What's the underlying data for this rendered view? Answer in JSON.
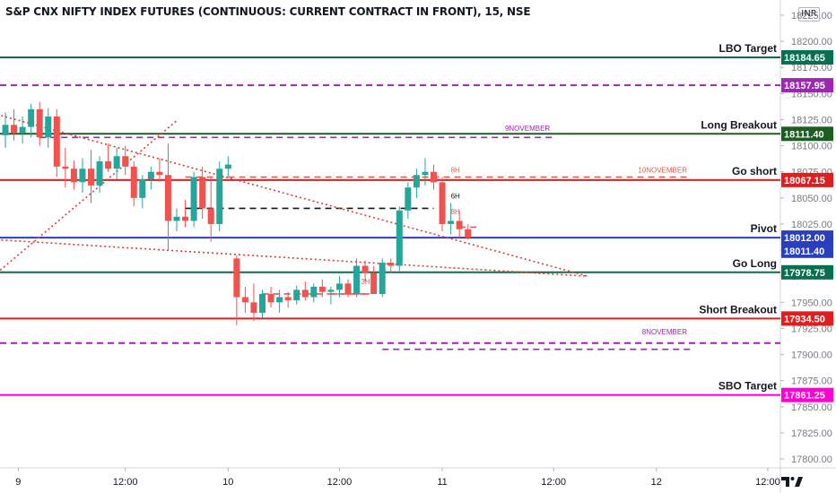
{
  "header": {
    "title": "S&P CNX NIFTY INDEX FUTURES (CONTINUOUS: CURRENT CONTRACT IN FRONT), 15, NSE",
    "currency": "INR"
  },
  "colors": {
    "up": "#26a69a",
    "down": "#ef5350",
    "red_level": "#e01e1e",
    "green_level": "#0b6e4f",
    "purple": "#9c27b0",
    "magenta": "#ff00d4",
    "blue": "#2a3fbd",
    "trend": "#e53935"
  },
  "chart_data": {
    "type": "candlestick",
    "title": "S&P CNX NIFTY INDEX FUTURES (CONTINUOUS: CURRENT CONTRACT IN FRONT), 15, NSE",
    "timeframe": "15",
    "y_axis": {
      "ticks": [
        17800,
        17825,
        17850,
        17875,
        17900,
        17925,
        17950,
        17975,
        18000,
        18025,
        18050,
        18075,
        18100,
        18125,
        18150,
        18175,
        18200,
        18225
      ],
      "range": [
        17790,
        18230
      ],
      "side": "right"
    },
    "x_axis": {
      "tick_labels": [
        {
          "label": "9",
          "t": 1.5
        },
        {
          "label": "12:00",
          "t": 14
        },
        {
          "label": "10",
          "t": 26
        },
        {
          "label": "12:00",
          "t": 39
        },
        {
          "label": "11",
          "t": 51
        },
        {
          "label": "12:00",
          "t": 64
        },
        {
          "label": "12",
          "t": 76
        },
        {
          "label": "12:00",
          "t": 89
        }
      ]
    },
    "candles": [
      {
        "t": 0,
        "o": 18110,
        "h": 18132,
        "l": 18098,
        "c": 18120
      },
      {
        "t": 1,
        "o": 18120,
        "h": 18135,
        "l": 18105,
        "c": 18112
      },
      {
        "t": 2,
        "o": 18112,
        "h": 18128,
        "l": 18102,
        "c": 18118
      },
      {
        "t": 3,
        "o": 18118,
        "h": 18140,
        "l": 18108,
        "c": 18135
      },
      {
        "t": 4,
        "o": 18135,
        "h": 18142,
        "l": 18100,
        "c": 18108
      },
      {
        "t": 5,
        "o": 18108,
        "h": 18136,
        "l": 18098,
        "c": 18128
      },
      {
        "t": 6,
        "o": 18128,
        "h": 18135,
        "l": 18070,
        "c": 18080
      },
      {
        "t": 7,
        "o": 18080,
        "h": 18098,
        "l": 18060,
        "c": 18078
      },
      {
        "t": 8,
        "o": 18078,
        "h": 18086,
        "l": 18058,
        "c": 18065
      },
      {
        "t": 9,
        "o": 18065,
        "h": 18088,
        "l": 18055,
        "c": 18078
      },
      {
        "t": 10,
        "o": 18078,
        "h": 18096,
        "l": 18045,
        "c": 18062
      },
      {
        "t": 11,
        "o": 18062,
        "h": 18090,
        "l": 18055,
        "c": 18085
      },
      {
        "t": 12,
        "o": 18085,
        "h": 18102,
        "l": 18075,
        "c": 18078
      },
      {
        "t": 13,
        "o": 18078,
        "h": 18098,
        "l": 18068,
        "c": 18090
      },
      {
        "t": 14,
        "o": 18090,
        "h": 18100,
        "l": 18072,
        "c": 18080
      },
      {
        "t": 15,
        "o": 18080,
        "h": 18085,
        "l": 18042,
        "c": 18050
      },
      {
        "t": 16,
        "o": 18050,
        "h": 18072,
        "l": 18040,
        "c": 18068
      },
      {
        "t": 17,
        "o": 18068,
        "h": 18080,
        "l": 18058,
        "c": 18075
      },
      {
        "t": 18,
        "o": 18075,
        "h": 18088,
        "l": 18065,
        "c": 18072
      },
      {
        "t": 19,
        "o": 18072,
        "h": 18102,
        "l": 18000,
        "c": 18028
      },
      {
        "t": 20,
        "o": 18028,
        "h": 18040,
        "l": 18018,
        "c": 18032
      },
      {
        "t": 21,
        "o": 18032,
        "h": 18048,
        "l": 18022,
        "c": 18028
      },
      {
        "t": 22,
        "o": 18028,
        "h": 18075,
        "l": 18022,
        "c": 18070
      },
      {
        "t": 23,
        "o": 18070,
        "h": 18080,
        "l": 18030,
        "c": 18040
      },
      {
        "t": 24,
        "o": 18040,
        "h": 18070,
        "l": 18008,
        "c": 18025
      },
      {
        "t": 25,
        "o": 18025,
        "h": 18085,
        "l": 18018,
        "c": 18078
      },
      {
        "t": 26,
        "o": 18078,
        "h": 18090,
        "l": 18070,
        "c": 18082
      },
      {
        "t": 27,
        "o": 17992,
        "h": 17995,
        "l": 17928,
        "c": 17955
      },
      {
        "t": 28,
        "o": 17955,
        "h": 17965,
        "l": 17940,
        "c": 17950
      },
      {
        "t": 29,
        "o": 17950,
        "h": 17968,
        "l": 17932,
        "c": 17940
      },
      {
        "t": 30,
        "o": 17940,
        "h": 17962,
        "l": 17935,
        "c": 17958
      },
      {
        "t": 31,
        "o": 17958,
        "h": 17965,
        "l": 17945,
        "c": 17950
      },
      {
        "t": 32,
        "o": 17950,
        "h": 17962,
        "l": 17940,
        "c": 17955
      },
      {
        "t": 33,
        "o": 17955,
        "h": 17960,
        "l": 17945,
        "c": 17952
      },
      {
        "t": 34,
        "o": 17952,
        "h": 17966,
        "l": 17948,
        "c": 17962
      },
      {
        "t": 35,
        "o": 17962,
        "h": 17970,
        "l": 17952,
        "c": 17955
      },
      {
        "t": 36,
        "o": 17955,
        "h": 17968,
        "l": 17950,
        "c": 17965
      },
      {
        "t": 37,
        "o": 17965,
        "h": 17972,
        "l": 17955,
        "c": 17960
      },
      {
        "t": 38,
        "o": 17960,
        "h": 17965,
        "l": 17948,
        "c": 17962
      },
      {
        "t": 39,
        "o": 17962,
        "h": 17975,
        "l": 17955,
        "c": 17968
      },
      {
        "t": 40,
        "o": 17968,
        "h": 17972,
        "l": 17955,
        "c": 17958
      },
      {
        "t": 41,
        "o": 17958,
        "h": 17992,
        "l": 17955,
        "c": 17985
      },
      {
        "t": 42,
        "o": 17985,
        "h": 17990,
        "l": 17970,
        "c": 17978
      },
      {
        "t": 43,
        "o": 17978,
        "h": 17985,
        "l": 17958,
        "c": 17958
      },
      {
        "t": 44,
        "o": 17958,
        "h": 17992,
        "l": 17955,
        "c": 17988
      },
      {
        "t": 45,
        "o": 17988,
        "h": 17992,
        "l": 17978,
        "c": 17985
      },
      {
        "t": 46,
        "o": 17985,
        "h": 18042,
        "l": 17980,
        "c": 18038
      },
      {
        "t": 47,
        "o": 18038,
        "h": 18065,
        "l": 18030,
        "c": 18060
      },
      {
        "t": 48,
        "o": 18060,
        "h": 18078,
        "l": 18050,
        "c": 18072
      },
      {
        "t": 49,
        "o": 18072,
        "h": 18088,
        "l": 18062,
        "c": 18075
      },
      {
        "t": 50,
        "o": 18075,
        "h": 18082,
        "l": 18058,
        "c": 18065
      },
      {
        "t": 51,
        "o": 18065,
        "h": 18070,
        "l": 18018,
        "c": 18025
      },
      {
        "t": 52,
        "o": 18025,
        "h": 18045,
        "l": 18015,
        "c": 18028
      },
      {
        "t": 53,
        "o": 18028,
        "h": 18038,
        "l": 18012,
        "c": 18020
      },
      {
        "t": 54,
        "o": 18020,
        "h": 18025,
        "l": 18010,
        "c": 18012
      }
    ],
    "levels": [
      {
        "label": "LBO Target",
        "price": 18184.65,
        "price_label": "18184.65",
        "color": "#0b6e4f",
        "style": "solid"
      },
      {
        "label": "",
        "price": 18157.95,
        "price_label": "18157.95",
        "color": "#9c27b0",
        "style": "dashed"
      },
      {
        "label": "Long Breakout",
        "price": 18111.4,
        "price_label": "18111.40",
        "color": "#1b5e20",
        "style": "solid"
      },
      {
        "label": "Go short",
        "price": 18067.15,
        "price_label": "18067.15",
        "color": "#e01e1e",
        "style": "solid"
      },
      {
        "label": "Pivot",
        "price": 18012.0,
        "price_label": "18012.00",
        "color": "#2a3fbd",
        "style": "solid"
      },
      {
        "label": "Go Long",
        "price": 17978.75,
        "price_label": "17978.75",
        "color": "#0b6e4f",
        "style": "solid"
      },
      {
        "label": "Short Breakout",
        "price": 17934.5,
        "price_label": "17934.50",
        "color": "#e01e1e",
        "style": "solid"
      },
      {
        "label": "",
        "price": 17911.0,
        "price_label": "",
        "color": "#9c27b0",
        "style": "dashed"
      },
      {
        "label": "SBO Target",
        "price": 17861.25,
        "price_label": "17861.25",
        "color": "#ff00d4",
        "style": "solid"
      }
    ],
    "current_price": {
      "price": 18011.4,
      "label": "18011.40",
      "color": "#2a3fbd"
    },
    "short_levels": [
      {
        "t0": 4,
        "t1": 64,
        "price": 18108,
        "color": "#9c27b0",
        "style": "dashed",
        "note": "9NOVEMBER",
        "note_price": 18117
      },
      {
        "t0": 21,
        "t1": 80,
        "price": 18070,
        "color": "#ef5350",
        "style": "dashed",
        "note": "10NOVEMBER",
        "note_price": 18077
      },
      {
        "t0": 21,
        "t1": 50,
        "price": 18040,
        "color": "#131722",
        "style": "dashed",
        "note": "",
        "note_price": 0
      },
      {
        "t0": 30,
        "t1": 42,
        "price": 17958,
        "color": "#ef5350",
        "style": "dashed",
        "note": "",
        "note_price": 0
      },
      {
        "t0": 38,
        "t1": 43,
        "price": 17958,
        "color": "#ef5350",
        "style": "dashed",
        "note": "3H",
        "note_price": 17970
      },
      {
        "t0": 44,
        "t1": 80,
        "price": 17905,
        "color": "#9c27b0",
        "style": "dashed",
        "note": "8NOVEMBER",
        "note_price": 17922
      },
      {
        "t0": 53,
        "t1": 55,
        "price": 18022,
        "color": "#ef5350",
        "style": "dashed",
        "note": "",
        "note_price": 0
      }
    ],
    "mini_labels": [
      {
        "text": "8H",
        "t": 52,
        "price": 18077,
        "color": "#ef5350"
      },
      {
        "text": "6H",
        "t": 52,
        "price": 18052,
        "color": "#131722"
      },
      {
        "text": "8H",
        "t": 52,
        "price": 18037,
        "color": "#ef5350"
      }
    ],
    "trendlines": [
      {
        "from": {
          "t": -1,
          "price": 18130
        },
        "to": {
          "t": 68,
          "price": 17975
        },
        "color": "#e53935",
        "style": "dotted"
      },
      {
        "from": {
          "t": -1,
          "price": 18010
        },
        "to": {
          "t": 68,
          "price": 17975
        },
        "color": "#e53935",
        "style": "dotted"
      },
      {
        "from": {
          "t": -1,
          "price": 17978
        },
        "to": {
          "t": 20,
          "price": 18124
        },
        "color": "#e53935",
        "style": "dotted"
      }
    ],
    "grid": false,
    "legend": "none"
  }
}
